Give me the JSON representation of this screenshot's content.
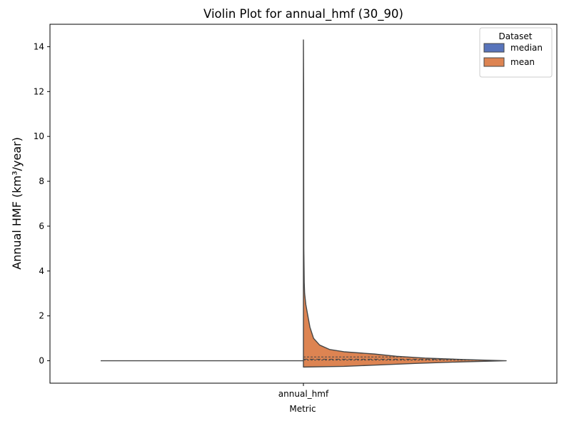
{
  "chart_data": {
    "type": "violin",
    "title": "Violin Plot for annual_hmf (30_90)",
    "xlabel": "Metric",
    "ylabel": "Annual HMF (km³/year)",
    "categories": [
      "annual_hmf"
    ],
    "ylim": [
      -1,
      15
    ],
    "yticks": [
      0,
      2,
      4,
      6,
      8,
      10,
      12,
      14
    ],
    "ytick_labels": [
      "0",
      "2",
      "4",
      "6",
      "8",
      "10",
      "12",
      "14"
    ],
    "split": true,
    "inner": "quartile",
    "grid": false,
    "legend": {
      "title": "Dataset",
      "placement": "top-right",
      "entries": [
        "median",
        "mean"
      ]
    },
    "series": [
      {
        "name": "median",
        "color": "#5874bb",
        "side": "left",
        "min": 0,
        "max": 0,
        "density": [
          [
            0,
            1.0
          ]
        ]
      },
      {
        "name": "mean",
        "color": "#dd8452",
        "side": "right",
        "min": -0.28,
        "max": 14.3,
        "q1": 0.03,
        "median": 0.07,
        "q3": 0.17,
        "density": [
          [
            -0.28,
            0.0
          ],
          [
            -0.25,
            0.2
          ],
          [
            -0.2,
            0.34
          ],
          [
            -0.12,
            0.55
          ],
          [
            -0.05,
            0.78
          ],
          [
            0.0,
            1.0
          ],
          [
            0.05,
            0.8
          ],
          [
            0.12,
            0.6
          ],
          [
            0.2,
            0.46
          ],
          [
            0.3,
            0.35
          ],
          [
            0.4,
            0.2
          ],
          [
            0.5,
            0.13
          ],
          [
            0.7,
            0.08
          ],
          [
            1.0,
            0.05
          ],
          [
            1.5,
            0.032
          ],
          [
            2.0,
            0.022
          ],
          [
            2.5,
            0.012
          ],
          [
            3.0,
            0.006
          ],
          [
            3.5,
            0.004
          ],
          [
            5.0,
            0.002
          ],
          [
            8.0,
            0.0015
          ],
          [
            12.0,
            0.0012
          ],
          [
            14.3,
            0.0
          ]
        ]
      }
    ]
  }
}
